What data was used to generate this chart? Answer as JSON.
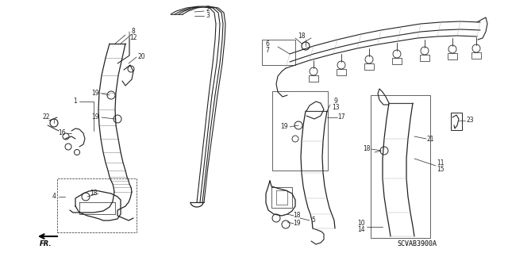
{
  "diagram_code": "SCVAB3900A",
  "bg": "#ffffff",
  "lc": "#222222",
  "fig_w": 6.4,
  "fig_h": 3.19,
  "dpi": 100
}
